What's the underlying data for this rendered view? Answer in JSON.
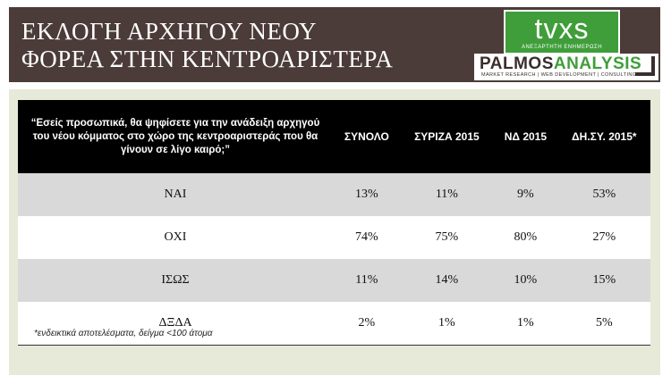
{
  "header": {
    "title_line1": "ΕΚΛΟΓΗ ΑΡΧΗΓΟΥ ΝΕΟΥ",
    "title_line2": "ΦΟΡΕΑ ΣΤΗΝ ΚΕΝΤΡΟΑΡΙΣΤΕΡΑ",
    "logo_main": "tvxs",
    "logo_sub": "ΑΝΕΞΑΡΤΗΤΗ ΕΝΗΜΕΡΩΣΗ",
    "palmos_name_a": "PALMOS",
    "palmos_name_b": "ANALYSIS",
    "palmos_tagline": "MARKET RESEARCH | WEB DEVELOPMENT | CONSULTING"
  },
  "table": {
    "question": "“Εσείς προσωπικά, θα ψηφίσετε για την ανάδειξη αρχηγού του νέου κόμματος στο χώρο της κεντροαριστεράς που θα γίνουν σε λίγο καιρό;”",
    "columns": [
      "ΣΥΝΟΛΟ",
      "ΣΥΡΙΖΑ 2015",
      "ΝΔ 2015",
      "ΔΗ.ΣΥ. 2015*"
    ],
    "rows": [
      {
        "label": "ΝΑΙ",
        "values": [
          "13%",
          "11%",
          "9%",
          "53%"
        ]
      },
      {
        "label": "ΟΧΙ",
        "values": [
          "74%",
          "75%",
          "80%",
          "27%"
        ]
      },
      {
        "label": "ΙΣΩΣ",
        "values": [
          "11%",
          "14%",
          "10%",
          "15%"
        ]
      },
      {
        "label": "ΔΞΔΑ",
        "values": [
          "2%",
          "1%",
          "1%",
          "5%"
        ]
      }
    ]
  },
  "footnote": "*ενδεικτικά αποτελέσματα, δείγμα <100 άτομα"
}
